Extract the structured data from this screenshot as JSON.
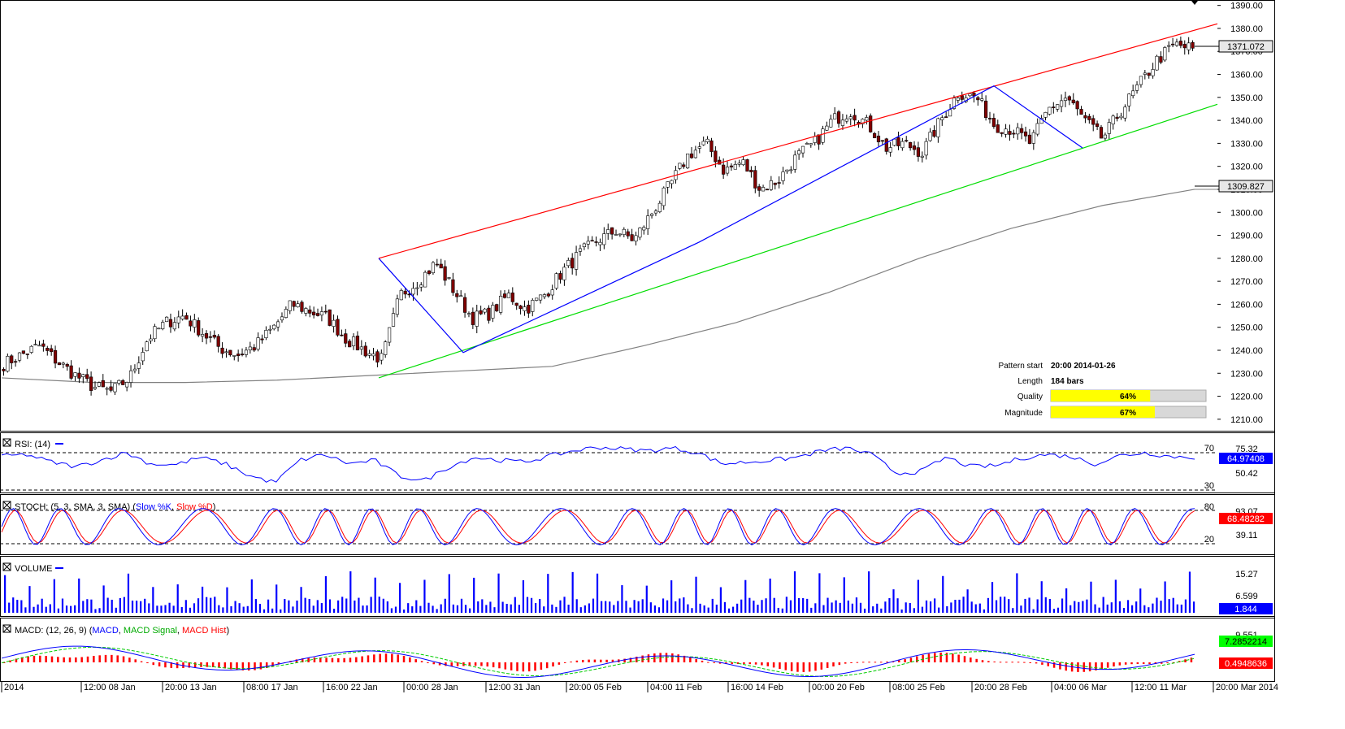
{
  "colors": {
    "channel_upper": "#ff0000",
    "channel_lower": "#00dd00",
    "zigzag": "#0000ff",
    "moving_average": "#808080",
    "candle_up": "#ffffff",
    "candle_down": "#800000",
    "rsi_line": "#0000ff",
    "stoch_k": "#0000ff",
    "stoch_d": "#ff0000",
    "volume": "#0000ff",
    "macd": "#0000ff",
    "macd_signal": "#00cc00",
    "macd_hist": "#ff0000",
    "quality_fill": "#ffff00"
  },
  "main": {
    "price_ticks": [
      "1390.00",
      "1380.00",
      "1370.00",
      "1360.00",
      "1350.00",
      "1340.00",
      "1330.00",
      "1320.00",
      "1310.00",
      "1300.00",
      "1290.00",
      "1280.00",
      "1270.00",
      "1260.00",
      "1250.00",
      "1240.00",
      "1230.00",
      "1220.00",
      "1210.00"
    ],
    "last_price": "1371.072",
    "ma_value": "1309.827",
    "info": {
      "pattern_start_label": "Pattern start",
      "pattern_start_value": "20:00 2014-01-26",
      "length_label": "Length",
      "length_value": "184 bars",
      "quality_label": "Quality",
      "quality_value": "64%",
      "quality_fraction": 0.64,
      "magnitude_label": "Magnitude",
      "magnitude_value": "67%",
      "magnitude_fraction": 0.67
    }
  },
  "rsi": {
    "title": "RSI: (14)",
    "levels": [
      "70",
      "30"
    ],
    "scale": [
      "75.32",
      "50.42"
    ],
    "current": "64.97408"
  },
  "stoch": {
    "title_prefix": "STOCH: (5, 3, SMA, 3, SMA)",
    "title_k": "Slow %K",
    "title_d": "Slow %D",
    "levels": [
      "80",
      "20"
    ],
    "scale": [
      "93.07",
      "39.11"
    ],
    "current": "68.48282"
  },
  "volume": {
    "title": "VOLUME",
    "scale": [
      "15.27",
      "6.599"
    ],
    "current": "1.844"
  },
  "macd": {
    "title_prefix": "MACD: (12, 26, 9)",
    "title_macd": "MACD",
    "title_signal": "MACD Signal",
    "title_hist": "MACD Hist",
    "scale_top": "9.551",
    "current_signal": "7.2852214",
    "current_hist": "0.4948636"
  },
  "x_axis": [
    "2014",
    "12:00 08 Jan",
    "20:00 13 Jan",
    "08:00 17 Jan",
    "16:00 22 Jan",
    "00:00 28 Jan",
    "12:00 31 Jan",
    "20:00 05 Feb",
    "04:00 11 Feb",
    "16:00 14 Feb",
    "00:00 20 Feb",
    "08:00 25 Feb",
    "20:00 28 Feb",
    "04:00 06 Mar",
    "12:00 11 Mar",
    "20:00 Mar 2014"
  ],
  "chart_data": {
    "type": "candlestick",
    "ylim": [
      1205,
      1392
    ],
    "channel_upper": [
      {
        "t": "20:00 2014-01-26",
        "y": 1280
      },
      {
        "t": "end",
        "y": 1382
      }
    ],
    "channel_lower": [
      {
        "t": "20:00 2014-01-26",
        "y": 1228
      },
      {
        "t": "end",
        "y": 1347
      }
    ],
    "zigzag_y": [
      1280,
      1239,
      1287,
      1355,
      1328
    ],
    "moving_average_y": [
      1228,
      1226,
      1226,
      1227,
      1229,
      1231,
      1233,
      1242,
      1252,
      1265,
      1280,
      1293,
      1303,
      1310
    ],
    "close_path": [
      1234,
      1238,
      1242,
      1235,
      1229,
      1224,
      1222,
      1228,
      1245,
      1252,
      1255,
      1248,
      1241,
      1238,
      1242,
      1250,
      1260,
      1257,
      1254,
      1245,
      1240,
      1236,
      1264,
      1270,
      1278,
      1266,
      1254,
      1256,
      1264,
      1258,
      1264,
      1274,
      1282,
      1288,
      1292,
      1288,
      1300,
      1312,
      1325,
      1330,
      1318,
      1322,
      1310,
      1314,
      1324,
      1330,
      1340,
      1344,
      1338,
      1328,
      1330,
      1326,
      1340,
      1352,
      1350,
      1338,
      1336,
      1330,
      1345,
      1350,
      1340,
      1332,
      1344,
      1355,
      1366,
      1373,
      1371
    ],
    "rsi": [
      66,
      68,
      60,
      55,
      62,
      70,
      58,
      57,
      65,
      58,
      45,
      38,
      62,
      68,
      58,
      62,
      45,
      40,
      55,
      65,
      62,
      60,
      66,
      72,
      76,
      74,
      72,
      75,
      70,
      58,
      60,
      62,
      65,
      72,
      75,
      68,
      48,
      50,
      65,
      55,
      56,
      64,
      68,
      66,
      58,
      67,
      70,
      66,
      65
    ]
  }
}
